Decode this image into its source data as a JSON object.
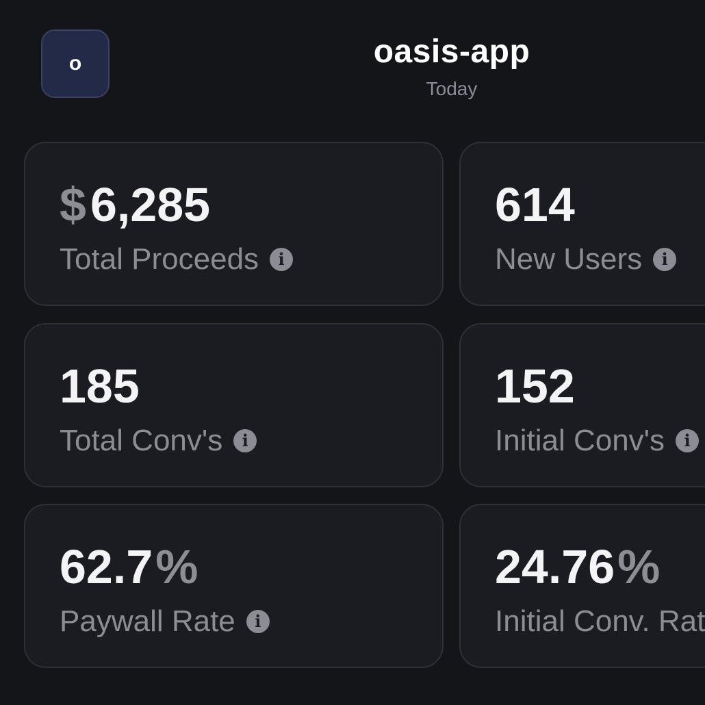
{
  "app": {
    "avatar_letter": "o",
    "title": "oasis-app",
    "period": "Today"
  },
  "metrics": [
    {
      "prefix": "$",
      "value": "6,285",
      "suffix": "",
      "label": "Total Proceeds"
    },
    {
      "prefix": "",
      "value": "614",
      "suffix": "",
      "label": "New Users"
    },
    {
      "prefix": "",
      "value": "185",
      "suffix": "",
      "label": "Total Conv's"
    },
    {
      "prefix": "",
      "value": "152",
      "suffix": "",
      "label": "Initial Conv's"
    },
    {
      "prefix": "",
      "value": "62.7",
      "suffix": "%",
      "label": "Paywall Rate"
    },
    {
      "prefix": "",
      "value": "24.76",
      "suffix": "%",
      "label": "Initial Conv. Rate"
    }
  ],
  "icons": {
    "info": "info-icon",
    "info_glyph": "i"
  },
  "colors": {
    "background": "#141519",
    "card": "#1b1c21",
    "card_border": "#2f3036",
    "avatar_bg": "#232a48",
    "muted_text": "#8c8d94",
    "value_text": "#f4f4f6"
  }
}
